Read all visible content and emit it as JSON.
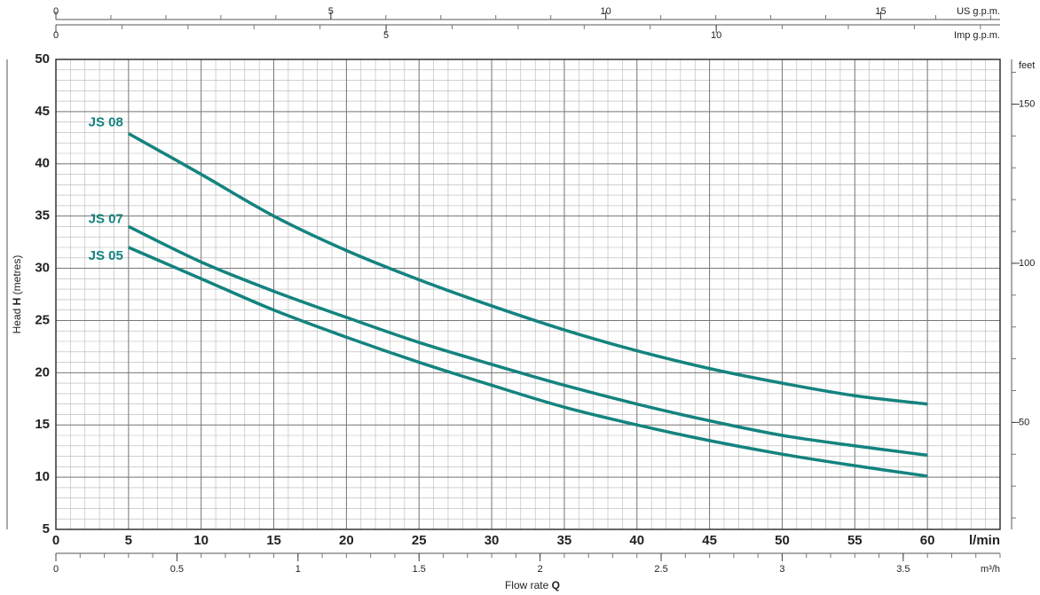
{
  "chart_data": {
    "type": "line",
    "xlabel": {
      "text": "Flow rate",
      "symbol": "Q"
    },
    "ylabel": {
      "pre": "Head",
      "symbol": "H",
      "post": "(metres)"
    },
    "x_unit": "l/min",
    "xlim": [
      0,
      65
    ],
    "xticks": [
      0,
      5,
      10,
      15,
      20,
      25,
      30,
      35,
      40,
      45,
      50,
      55,
      60
    ],
    "ylim": [
      5,
      50
    ],
    "yticks": [
      5,
      10,
      15,
      20,
      25,
      30,
      35,
      40,
      45,
      50
    ],
    "grid": true,
    "minor_grid": {
      "x": 1,
      "y": 1
    },
    "x": [
      5,
      10,
      15,
      20,
      25,
      30,
      35,
      40,
      45,
      50,
      55,
      60
    ],
    "series": [
      {
        "name": "JS 08",
        "color": "#14837f",
        "values": [
          42.9,
          39,
          35,
          31.7,
          28.9,
          26.4,
          24.1,
          22.1,
          20.4,
          19,
          17.8,
          17
        ]
      },
      {
        "name": "JS 07",
        "color": "#14837f",
        "values": [
          34,
          30.6,
          27.8,
          25.3,
          22.9,
          20.8,
          18.8,
          17,
          15.4,
          14,
          13,
          12.1
        ]
      },
      {
        "name": "JS 05",
        "color": "#14837f",
        "values": [
          32,
          29,
          26,
          23.4,
          21,
          18.8,
          16.7,
          15,
          13.5,
          12.2,
          11.1,
          10.1
        ]
      }
    ],
    "secondary_axes": [
      {
        "unit": "US g.p.m.",
        "position": "top",
        "lim": [
          0,
          17.171
        ],
        "ticks": [
          0,
          5,
          10,
          15
        ],
        "minor_step": 1
      },
      {
        "unit": "Imp g.p.m.",
        "position": "top",
        "lim": [
          0,
          14.298
        ],
        "ticks": [
          0,
          5,
          10
        ],
        "minor_step": 1
      },
      {
        "unit": "m³/h",
        "position": "bottom",
        "lim": [
          0,
          3.9
        ],
        "ticks": [
          0,
          0.5,
          1,
          1.5,
          2,
          2.5,
          3,
          3.5
        ],
        "minor_step": 0.1
      },
      {
        "unit": "feet",
        "position": "right",
        "lim": [
          16.404,
          164.042
        ],
        "ticks": [
          50,
          100,
          150
        ],
        "minor_step": 10
      }
    ]
  }
}
